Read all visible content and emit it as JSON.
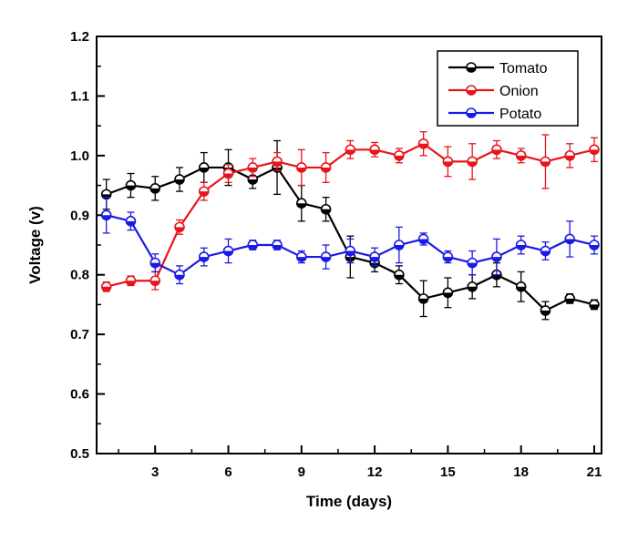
{
  "chart_data": {
    "type": "line",
    "xlabel": "Time (days)",
    "ylabel": "Voltage (v)",
    "xlim": [
      0.6,
      21.3
    ],
    "ylim": [
      0.5,
      1.2
    ],
    "x_ticks": [
      3,
      6,
      9,
      12,
      15,
      18,
      21
    ],
    "x_tick_labels": [
      "3",
      "6",
      "9",
      "12",
      "15",
      "18",
      "21"
    ],
    "y_ticks": [
      0.5,
      0.6,
      0.7,
      0.8,
      0.9,
      1.0,
      1.1,
      1.2
    ],
    "y_tick_labels": [
      "0.5",
      "0.6",
      "0.7",
      "0.8",
      "0.9",
      "1.0",
      "1.1",
      "1.2"
    ],
    "grid": false,
    "legend_position": "top-right",
    "x": [
      1,
      2,
      3,
      4,
      5,
      6,
      7,
      8,
      9,
      10,
      11,
      12,
      13,
      14,
      15,
      16,
      17,
      18,
      19,
      20,
      21
    ],
    "series": [
      {
        "name": "Tomato",
        "color": "#000000",
        "values": [
          0.935,
          0.95,
          0.945,
          0.96,
          0.98,
          0.98,
          0.96,
          0.98,
          0.92,
          0.91,
          0.83,
          0.82,
          0.8,
          0.76,
          0.77,
          0.78,
          0.8,
          0.78,
          0.74,
          0.76,
          0.75
        ],
        "errors": [
          0.025,
          0.02,
          0.02,
          0.02,
          0.025,
          0.03,
          0.015,
          0.045,
          0.03,
          0.02,
          0.035,
          0.015,
          0.015,
          0.03,
          0.025,
          0.02,
          0.02,
          0.025,
          0.015,
          0.008,
          0.008
        ]
      },
      {
        "name": "Onion",
        "color": "#e8141b",
        "values": [
          0.78,
          0.79,
          0.79,
          0.88,
          0.94,
          0.97,
          0.98,
          0.99,
          0.98,
          0.98,
          1.01,
          1.01,
          1.0,
          1.02,
          0.99,
          0.99,
          1.01,
          1.0,
          0.99,
          1.0,
          1.01
        ],
        "errors": [
          0.008,
          0.008,
          0.015,
          0.012,
          0.015,
          0.015,
          0.015,
          0.015,
          0.03,
          0.025,
          0.015,
          0.012,
          0.012,
          0.02,
          0.025,
          0.03,
          0.015,
          0.012,
          0.045,
          0.02,
          0.02
        ]
      },
      {
        "name": "Potato",
        "color": "#1a1ae6",
        "values": [
          0.9,
          0.89,
          0.82,
          0.8,
          0.83,
          0.84,
          0.85,
          0.85,
          0.83,
          0.83,
          0.84,
          0.83,
          0.85,
          0.86,
          0.83,
          0.82,
          0.83,
          0.85,
          0.84,
          0.86,
          0.85
        ],
        "errors": [
          0.03,
          0.015,
          0.015,
          0.015,
          0.015,
          0.02,
          0.008,
          0.008,
          0.01,
          0.02,
          0.02,
          0.015,
          0.03,
          0.01,
          0.01,
          0.02,
          0.03,
          0.015,
          0.015,
          0.03,
          0.015
        ]
      }
    ]
  }
}
